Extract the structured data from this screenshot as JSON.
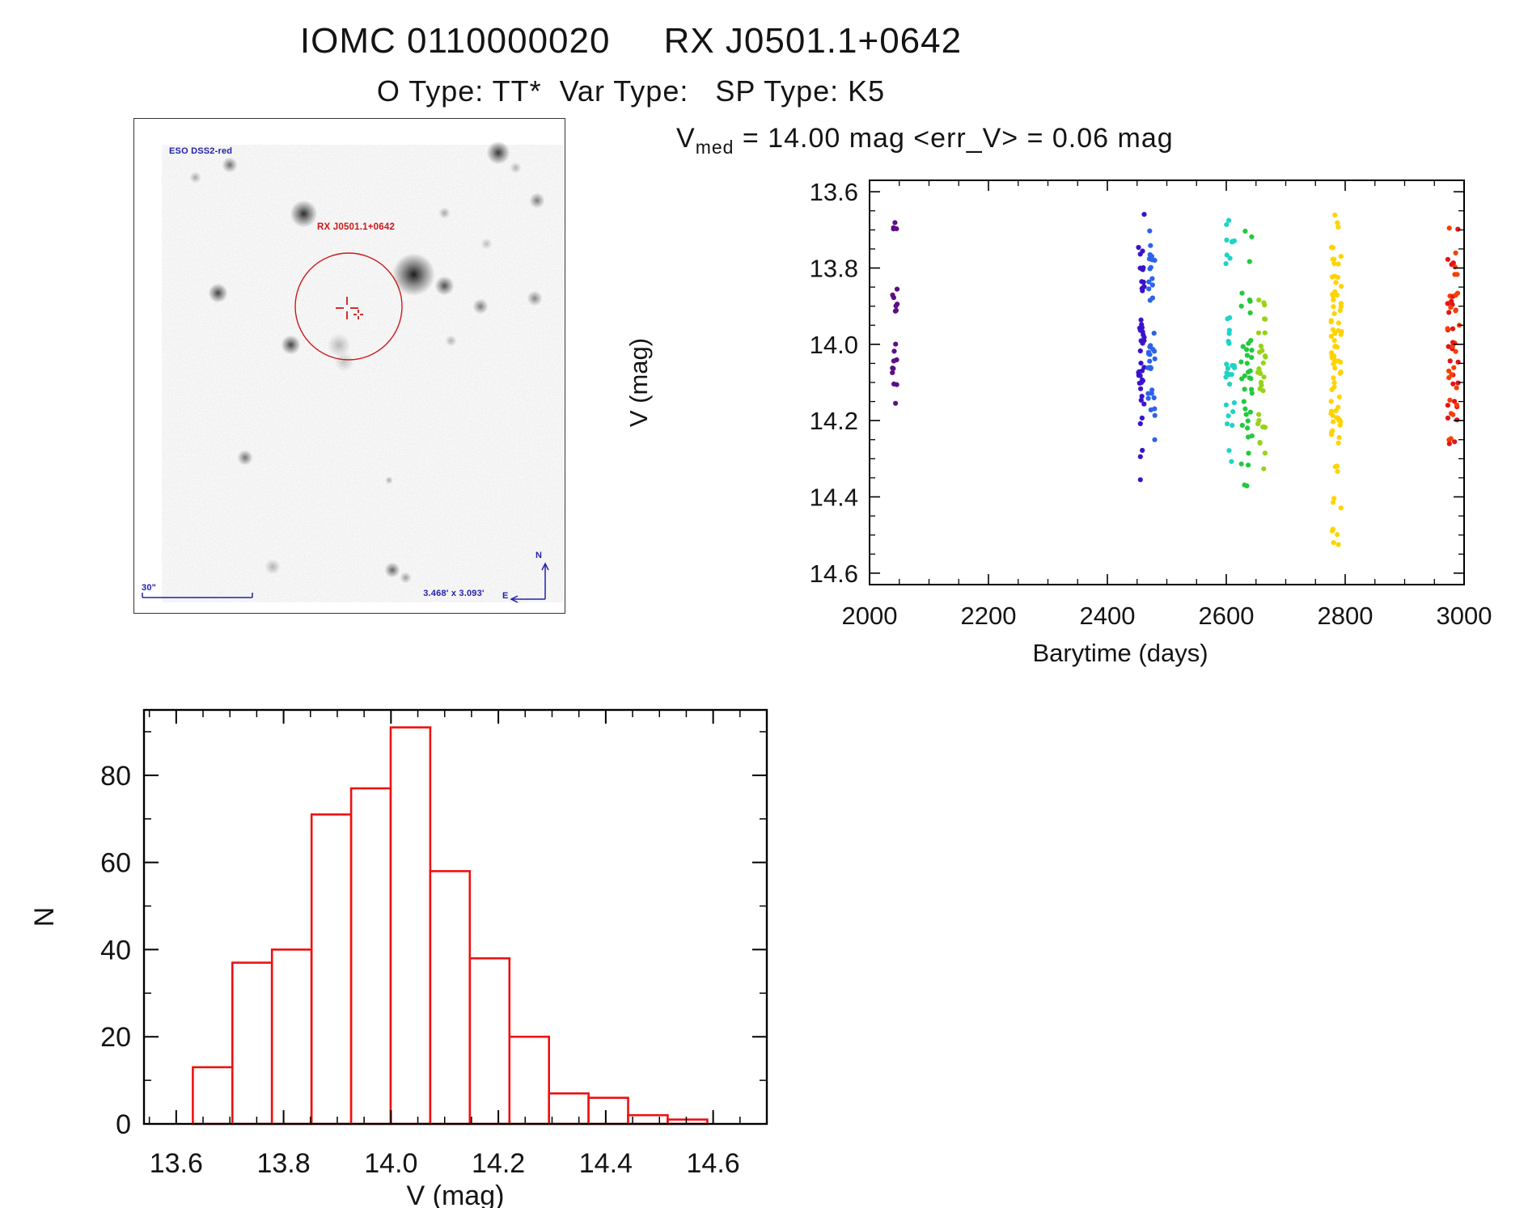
{
  "header": {
    "title": "IOMC 0110000020     RX J0501.1+0642",
    "subtitle": "O Type: TT*  Var Type:   SP Type: K5"
  },
  "finder": {
    "survey_label": "ESO DSS2-red",
    "source_label": "RX J0501.1+0642",
    "scale_label": "30\"",
    "fov_label": "3.468' x 3.093'",
    "compass_north": "N",
    "compass_east": "E",
    "annotation_blue": "#2222aa",
    "annotation_red": "#cc1818",
    "stars": [
      [
        450,
        42,
        6,
        0.85
      ],
      [
        118,
        57,
        4,
        0.6
      ],
      [
        209,
        117,
        7,
        0.9
      ],
      [
        345,
        192,
        11,
        0.97
      ],
      [
        383,
        206,
        5,
        0.75
      ],
      [
        428,
        232,
        4,
        0.55
      ],
      [
        103,
        215,
        5,
        0.8
      ],
      [
        193,
        279,
        5,
        0.8
      ],
      [
        137,
        419,
        4,
        0.6
      ],
      [
        498,
        101,
        4,
        0.55
      ],
      [
        383,
        116,
        3,
        0.35
      ],
      [
        495,
        222,
        4,
        0.5
      ],
      [
        319,
        558,
        4,
        0.65
      ],
      [
        335,
        567,
        3,
        0.4
      ],
      [
        171,
        554,
        4,
        0.3
      ],
      [
        315,
        447,
        2,
        0.35
      ],
      [
        75,
        72,
        3,
        0.35
      ],
      [
        471,
        60,
        3,
        0.3
      ],
      [
        253,
        280,
        6,
        0.28
      ],
      [
        259,
        300,
        5,
        0.22
      ],
      [
        391,
        274,
        3,
        0.3
      ],
      [
        435,
        154,
        3,
        0.25
      ]
    ]
  },
  "chart_data": [
    {
      "type": "scatter",
      "title_parts": {
        "pre": "V",
        "sub": "med",
        "post": " = 14.00 mag <err_V> = 0.06 mag"
      },
      "xlabel": "Barytime (days)",
      "ylabel": "V (mag)",
      "xlim": [
        2000,
        3000
      ],
      "ylim": [
        13.57,
        14.63
      ],
      "y_inverted": true,
      "xticks": [
        2000,
        2200,
        2400,
        2600,
        2800,
        3000
      ],
      "yticks": [
        13.6,
        13.8,
        14.0,
        14.2,
        14.4,
        14.6
      ],
      "x_minor_step": 50,
      "y_minor_step": 0.05,
      "point_radius": 3.1,
      "legend": "none",
      "grid": false,
      "clusters": [
        {
          "name": "epoch-2042",
          "color": "#5C0E87",
          "x": [
            2037,
            2047
          ],
          "bands": [
            [
              13.67,
              13.72,
              4
            ],
            [
              13.855,
              13.935,
              7
            ],
            [
              13.99,
              14.02,
              2
            ],
            [
              14.04,
              14.11,
              7
            ],
            [
              14.14,
              14.155,
              1
            ]
          ]
        },
        {
          "name": "epoch-2457",
          "color": "#3B12CC",
          "x": [
            2452,
            2462
          ],
          "bands": [
            [
              13.65,
              13.66,
              1
            ],
            [
              13.73,
              13.805,
              7
            ],
            [
              13.835,
              13.9,
              6
            ],
            [
              13.93,
              14.02,
              12
            ],
            [
              14.03,
              14.12,
              12
            ],
            [
              14.13,
              14.175,
              3
            ],
            [
              14.19,
              14.225,
              2
            ],
            [
              14.26,
              14.3,
              2
            ],
            [
              14.34,
              14.36,
              1
            ]
          ]
        },
        {
          "name": "epoch-2474",
          "color": "#2E62EA",
          "x": [
            2468,
            2480
          ],
          "bands": [
            [
              13.695,
              13.705,
              1
            ],
            [
              13.735,
              13.805,
              8
            ],
            [
              13.82,
              13.885,
              6
            ],
            [
              13.95,
              14.05,
              10
            ],
            [
              14.05,
              14.15,
              9
            ],
            [
              14.165,
              14.2,
              3
            ],
            [
              14.24,
              14.26,
              1
            ]
          ]
        },
        {
          "name": "epoch-2606",
          "color": "#1FD3C6",
          "x": [
            2598,
            2614
          ],
          "bands": [
            [
              13.675,
              13.69,
              2
            ],
            [
              13.725,
              13.79,
              7
            ],
            [
              13.92,
              14.0,
              6
            ],
            [
              14.02,
              14.13,
              10
            ],
            [
              14.15,
              14.22,
              6
            ],
            [
              14.26,
              14.31,
              2
            ]
          ]
        },
        {
          "name": "epoch-2634",
          "color": "#23C93E",
          "x": [
            2624,
            2644
          ],
          "bands": [
            [
              13.7,
              13.725,
              2
            ],
            [
              13.775,
              13.79,
              1
            ],
            [
              13.85,
              13.92,
              5
            ],
            [
              13.95,
              14.05,
              9
            ],
            [
              14.05,
              14.15,
              10
            ],
            [
              14.15,
              14.25,
              8
            ],
            [
              14.28,
              14.32,
              3
            ],
            [
              14.355,
              14.38,
              2
            ]
          ]
        },
        {
          "name": "epoch-2659",
          "color": "#97D319",
          "x": [
            2652,
            2666
          ],
          "bands": [
            [
              13.865,
              13.95,
              5
            ],
            [
              13.96,
              14.05,
              8
            ],
            [
              14.05,
              14.15,
              9
            ],
            [
              14.15,
              14.22,
              6
            ],
            [
              14.25,
              14.3,
              3
            ],
            [
              14.32,
              14.335,
              1
            ]
          ]
        },
        {
          "name": "epoch-2785",
          "color": "#FFD300",
          "x": [
            2776,
            2794
          ],
          "bands": [
            [
              13.655,
              13.7,
              3
            ],
            [
              13.73,
              13.8,
              8
            ],
            [
              13.82,
              13.9,
              11
            ],
            [
              13.9,
              14.0,
              15
            ],
            [
              14.0,
              14.1,
              17
            ],
            [
              14.1,
              14.2,
              14
            ],
            [
              14.2,
              14.28,
              8
            ],
            [
              14.3,
              14.36,
              4
            ],
            [
              14.39,
              14.44,
              3
            ],
            [
              14.46,
              14.5,
              3
            ],
            [
              14.515,
              14.53,
              2
            ]
          ]
        },
        {
          "name": "epoch-2982",
          "colors": [
            "#F54005",
            "#E51414"
          ],
          "x": [
            2972,
            2992
          ],
          "bands": [
            [
              13.675,
              13.7,
              2
            ],
            [
              13.755,
              13.82,
              7
            ],
            [
              13.84,
              13.92,
              12
            ],
            [
              13.94,
              14.02,
              10
            ],
            [
              14.04,
              14.12,
              10
            ],
            [
              14.13,
              14.2,
              9
            ],
            [
              14.22,
              14.265,
              4
            ]
          ]
        }
      ]
    },
    {
      "type": "histogram",
      "bin_start": 13.631,
      "bin_width": 0.0737,
      "values": [
        13,
        37,
        40,
        71,
        77,
        91,
        58,
        38,
        20,
        7,
        6,
        2,
        1
      ],
      "xlabel": "V (mag)",
      "ylabel": "N",
      "xlim": [
        13.54,
        14.7
      ],
      "ylim": [
        0,
        95
      ],
      "xticks": [
        13.6,
        13.8,
        14.0,
        14.2,
        14.4,
        14.6
      ],
      "yticks": [
        0,
        20,
        40,
        60,
        80
      ],
      "x_minor_step": 0.05,
      "y_minor_step": 10,
      "bar_color": "#EE1111",
      "grid": false
    }
  ]
}
